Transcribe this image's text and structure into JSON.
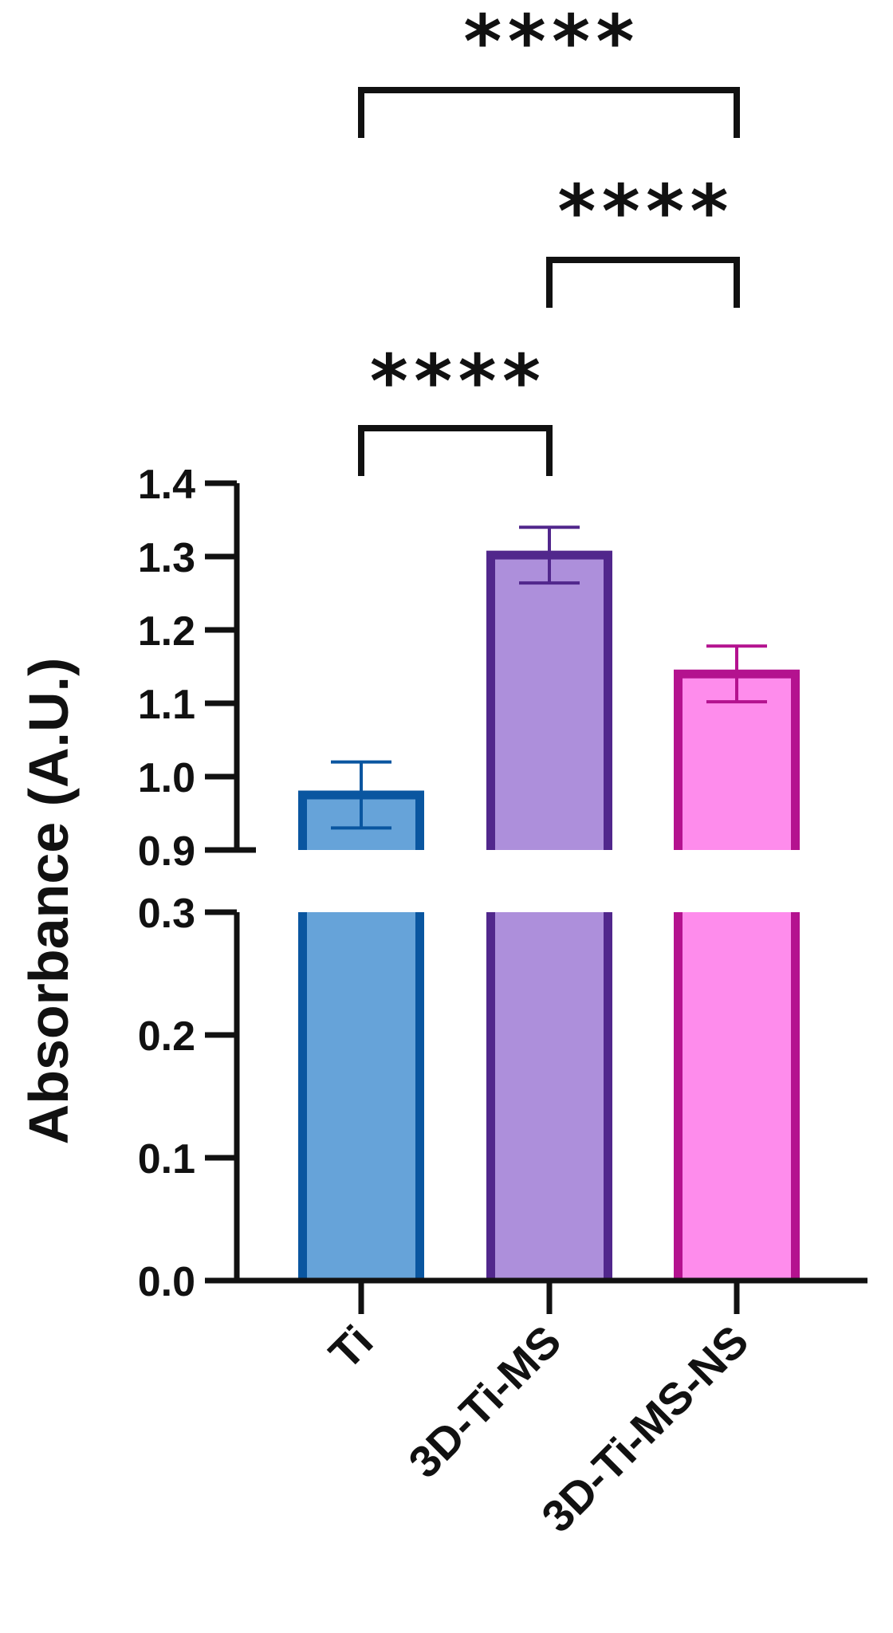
{
  "chart_data": {
    "type": "bar",
    "ylabel": "Absorbance (A.U.)",
    "xlabel": "",
    "categories": [
      "Ti",
      "3D-Ti-MS",
      "3D-Ti-MS-NS"
    ],
    "values": [
      0.975,
      1.302,
      1.14
    ],
    "errors": [
      0.045,
      0.038,
      0.038
    ],
    "colors": {
      "fill": [
        "#66a3d9",
        "#ad8fdb",
        "#fe8cec"
      ],
      "stroke": [
        "#0a56a0",
        "#51278c",
        "#b4128f"
      ]
    },
    "y_broken_axis": {
      "lower_range": [
        0.0,
        0.3
      ],
      "upper_range": [
        0.9,
        1.4
      ],
      "lower_ticks": [
        "0.0",
        "0.1",
        "0.2",
        "0.3"
      ],
      "upper_ticks": [
        "0.9",
        "1.0",
        "1.1",
        "1.2",
        "1.3",
        "1.4"
      ]
    },
    "significance": [
      {
        "from": 0,
        "to": 1,
        "label": "****"
      },
      {
        "from": 1,
        "to": 2,
        "label": "****"
      },
      {
        "from": 0,
        "to": 2,
        "label": "****"
      }
    ],
    "grid": false,
    "legend": "none"
  }
}
